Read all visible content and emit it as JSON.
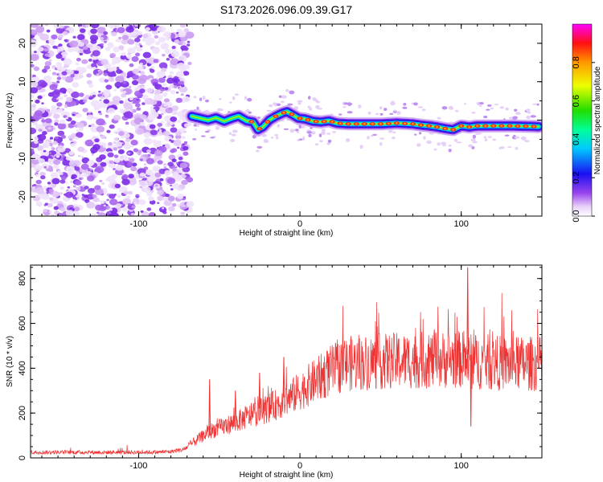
{
  "title": "S173.2026.096.09.39.G17",
  "chart_data": [
    {
      "type": "heatmap",
      "name": "spectrogram",
      "xlabel": "Height of straight line (km)",
      "ylabel": "Frequency (Hz)",
      "xlim": [
        -167,
        150
      ],
      "ylim": [
        -25,
        25
      ],
      "x_ticks": [
        -100,
        0,
        100
      ],
      "x_tick_labels": [
        "-100",
        "0",
        "100"
      ],
      "y_ticks": [
        -20,
        -10,
        0,
        10,
        20
      ],
      "y_tick_labels": [
        "-20",
        "-10",
        "0",
        "10",
        "20"
      ],
      "noise_region_x": [
        -167,
        -68
      ],
      "ridge": {
        "x": [
          -67,
          -62,
          -57,
          -52,
          -47,
          -42,
          -38,
          -33,
          -29,
          -26,
          -23,
          -19,
          -15,
          -11,
          -8,
          -5,
          -1,
          3,
          8,
          13,
          18,
          23,
          30,
          40,
          50,
          60,
          70,
          75,
          80,
          85,
          90,
          95,
          100,
          105,
          110,
          120,
          130,
          140,
          148
        ],
        "y": [
          1.0,
          0.5,
          0.0,
          0.6,
          -0.3,
          0.5,
          1.0,
          -0.2,
          -0.5,
          -2.5,
          -1.8,
          0.0,
          1.0,
          1.8,
          2.2,
          1.5,
          0.5,
          0.3,
          -0.3,
          -0.5,
          -0.2,
          -0.8,
          -1.0,
          -1.0,
          -1.0,
          -0.8,
          -1.0,
          -1.3,
          -1.5,
          -1.8,
          -2.2,
          -2.5,
          -1.5,
          -1.8,
          -1.5,
          -1.5,
          -1.5,
          -1.6,
          -1.7
        ]
      },
      "colorbar": {
        "label": "Normalized spectral amplitude",
        "range": [
          0,
          1
        ],
        "ticks": [
          0.0,
          0.2,
          0.4,
          0.6,
          0.8
        ],
        "tick_labels": [
          "0.0",
          "0.2",
          "0.4",
          "0.6",
          "0.8"
        ]
      }
    },
    {
      "type": "line",
      "name": "snr",
      "xlabel": "Height of straight line (km)",
      "ylabel": "SNR (10 * v/v)",
      "xlim": [
        -167,
        150
      ],
      "ylim": [
        0,
        860
      ],
      "x_ticks": [
        -100,
        0,
        100
      ],
      "x_tick_labels": [
        "-100",
        "0",
        "100"
      ],
      "y_ticks": [
        0,
        200,
        400,
        600,
        800
      ],
      "y_tick_labels": [
        "0",
        "200",
        "400",
        "600",
        "800"
      ],
      "color": "#ee3333",
      "envelope": {
        "x": [
          -167,
          -90,
          -80,
          -72,
          -65,
          -55,
          -40,
          -25,
          -10,
          0,
          10,
          20,
          30,
          50,
          70,
          90,
          100,
          105,
          110,
          130,
          150
        ],
        "y": [
          25,
          25,
          28,
          40,
          80,
          130,
          170,
          220,
          270,
          320,
          370,
          420,
          450,
          460,
          465,
          470,
          470,
          460,
          460,
          450,
          450
        ]
      },
      "spikes": {
        "x": [
          -56,
          -40,
          -25,
          -10,
          104,
          106
        ],
        "y": [
          350,
          300,
          380,
          450,
          850,
          140
        ]
      }
    }
  ]
}
